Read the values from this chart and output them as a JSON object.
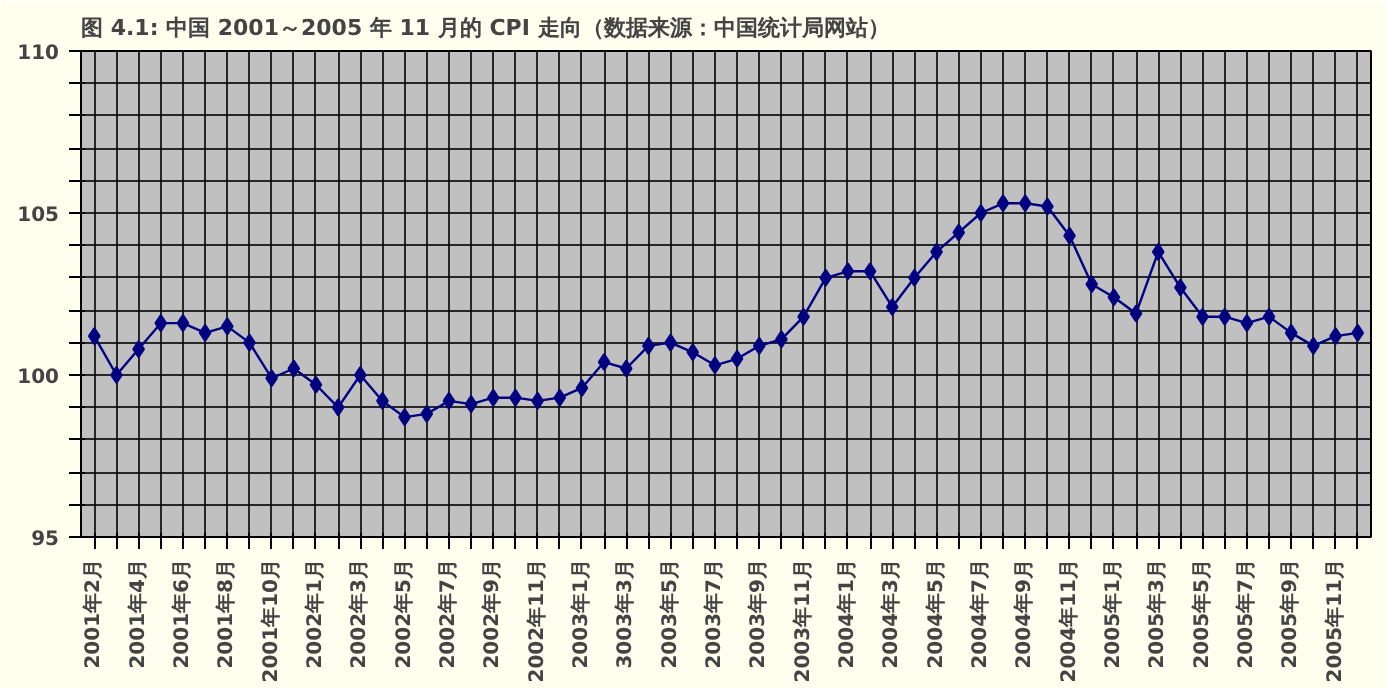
{
  "chart_data": {
    "type": "line",
    "title": "图 4.1: 中国 2001～2005 年 11 月的 CPI 走向（数据来源：中国统计局网站）",
    "categories": [
      "2001年2月",
      null,
      "2001年4月",
      null,
      "2001年6月",
      null,
      "2001年8月",
      null,
      "2001年10月",
      null,
      "2002年1月",
      null,
      "2002年3月",
      null,
      "2002年5月",
      null,
      "2002年7月",
      null,
      "2002年9月",
      null,
      "2002年11月",
      null,
      "2003年1月",
      null,
      "3003年3月",
      null,
      "2003年5月",
      null,
      "2003年7月",
      null,
      "2003年9月",
      null,
      "2003年11月",
      null,
      "2004年1月",
      null,
      "2004年3月",
      null,
      "2004年5月",
      null,
      "2004年7月",
      null,
      "2004年9月",
      null,
      "2004年11月",
      null,
      "2005年1月",
      null,
      "2005年3月",
      null,
      "2005年5月",
      null,
      "2005年7月",
      null,
      "2005年9月",
      null,
      "2005年11月",
      null
    ],
    "series": [
      {
        "color": "#000080",
        "values": [
          101.2,
          100.0,
          100.8,
          101.6,
          101.6,
          101.3,
          101.5,
          101.0,
          99.9,
          100.2,
          99.7,
          99.0,
          100.0,
          99.2,
          98.7,
          98.8,
          99.2,
          99.1,
          99.3,
          99.3,
          99.2,
          99.3,
          99.6,
          100.4,
          100.2,
          100.9,
          101.0,
          100.7,
          100.3,
          100.5,
          100.9,
          101.1,
          101.8,
          103.0,
          103.2,
          103.2,
          102.1,
          103.0,
          103.8,
          104.4,
          105.0,
          105.3,
          105.3,
          105.2,
          104.3,
          102.8,
          102.4,
          101.9,
          103.8,
          102.7,
          101.8,
          101.8,
          101.6,
          101.8,
          101.3,
          100.9,
          101.2,
          101.3
        ]
      }
    ],
    "ylim": [
      95,
      110
    ],
    "yticks": [
      95,
      {
        "value": 96,
        "label": null
      },
      {
        "value": 97,
        "label": null
      },
      {
        "value": 98,
        "label": null
      },
      {
        "value": 99,
        "label": null
      },
      100,
      {
        "value": 101,
        "label": null
      },
      {
        "value": 102,
        "label": null
      },
      {
        "value": 103,
        "label": null
      },
      {
        "value": 104,
        "label": null
      },
      105,
      {
        "value": 106,
        "label": null
      },
      {
        "value": 107,
        "label": null
      },
      {
        "value": 108,
        "label": null
      },
      {
        "value": 109,
        "label": null
      },
      110
    ],
    "grid": true,
    "marker": "diamond",
    "line_style": "solid"
  }
}
